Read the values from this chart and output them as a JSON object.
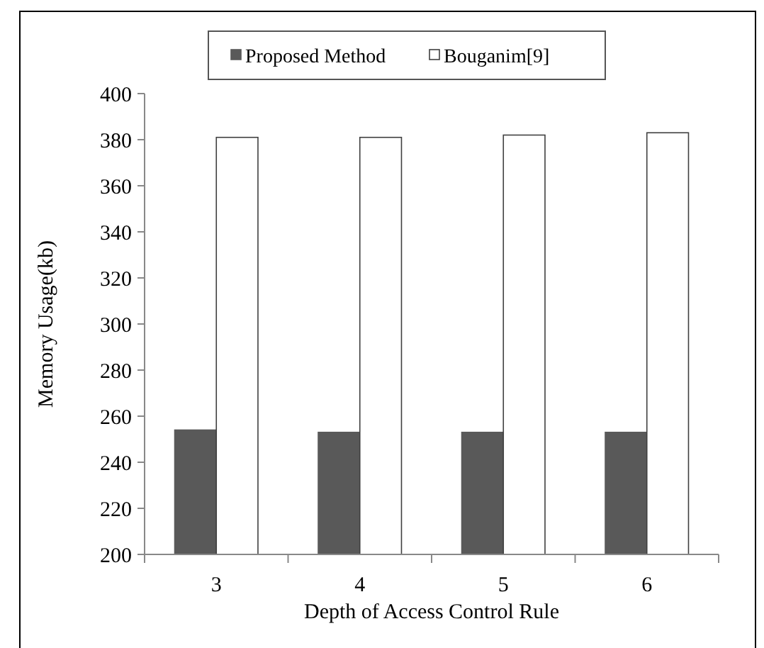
{
  "chart_data": {
    "type": "bar",
    "xlabel": "Depth of Access Control Rule",
    "ylabel": "Memory Usage(kb)",
    "categories": [
      "3",
      "4",
      "5",
      "6"
    ],
    "series": [
      {
        "name": "Proposed Method",
        "color": "#595959",
        "values": [
          254,
          253,
          253,
          253
        ]
      },
      {
        "name": "Bouganim[9]",
        "color": "#ffffff",
        "values": [
          381,
          381,
          382,
          383
        ]
      }
    ],
    "ylim": [
      200,
      400
    ],
    "yticks": [
      200,
      220,
      240,
      260,
      280,
      300,
      320,
      340,
      360,
      380,
      400
    ],
    "grid": false,
    "legend": "top"
  }
}
